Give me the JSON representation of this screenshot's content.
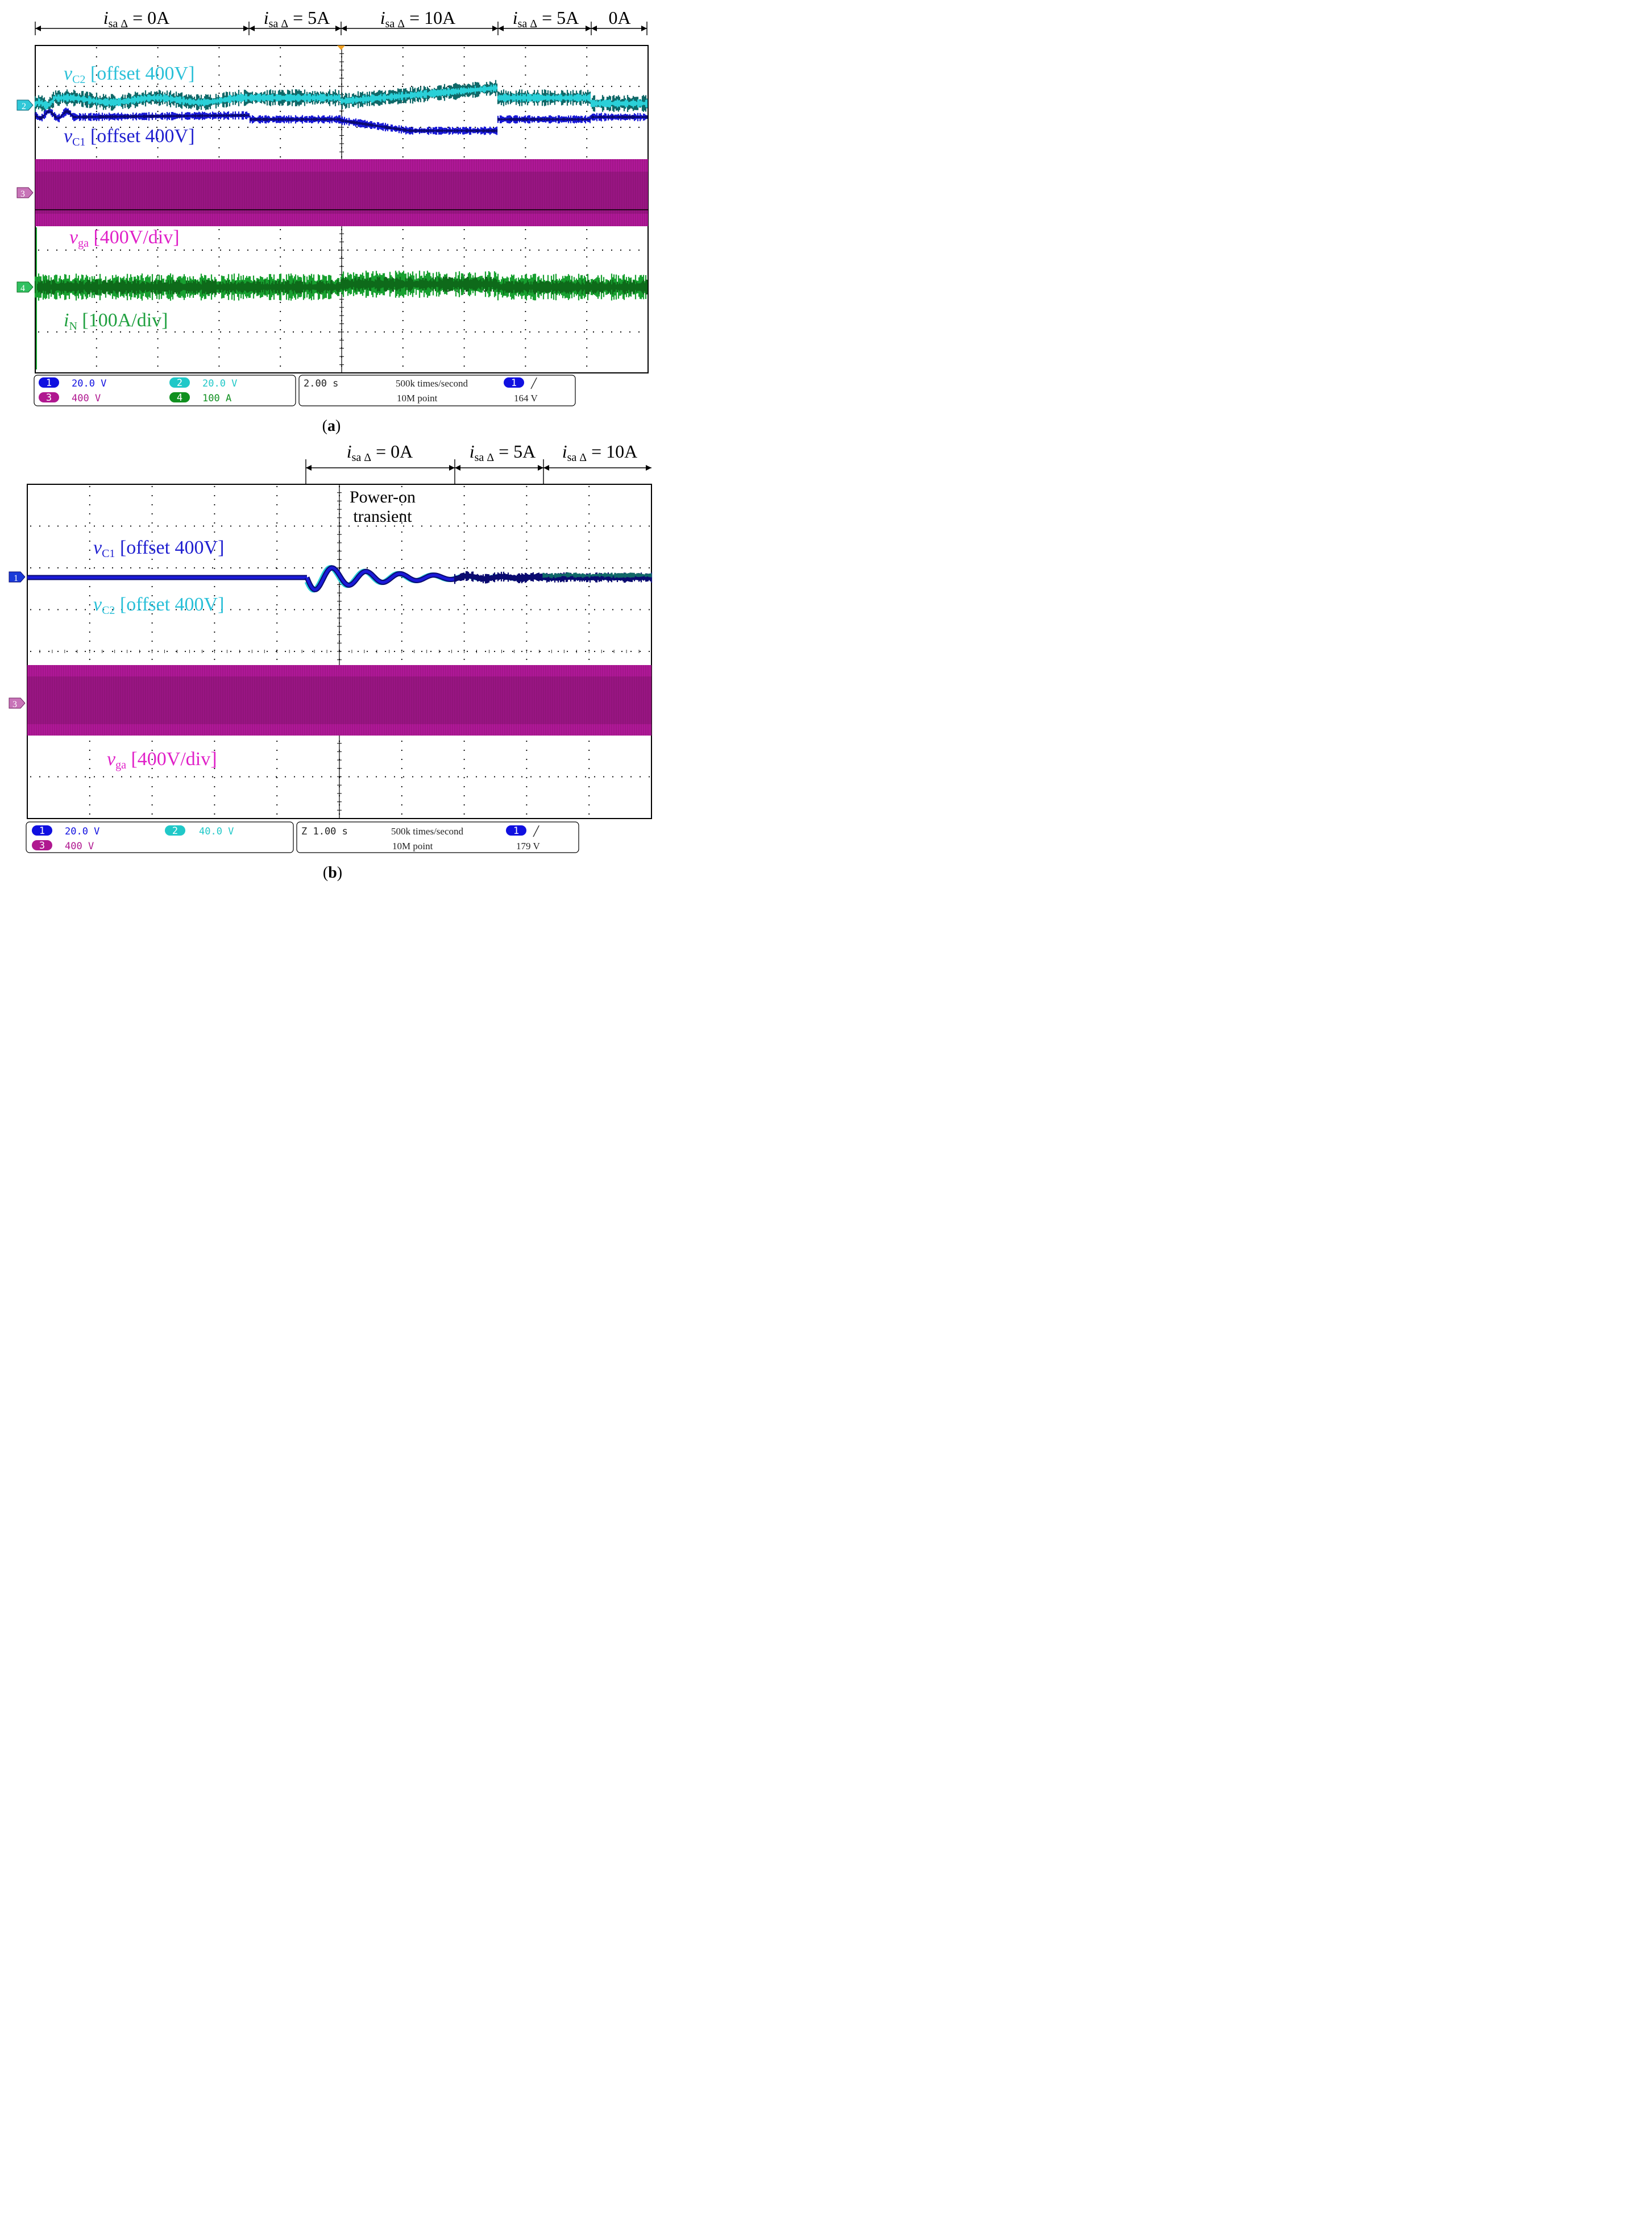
{
  "chart_data": [
    {
      "type": "oscilloscope",
      "panel_label": "(a)",
      "panel_letter": "a",
      "intervals": [
        {
          "base": "i",
          "sub": "sa Δ",
          "rest": " = 0A"
        },
        {
          "base": "i",
          "sub": "sa Δ",
          "rest": " = 5A"
        },
        {
          "base": "i",
          "sub": "sa Δ",
          "rest": " = 10A"
        },
        {
          "base": "i",
          "sub": "sa Δ",
          "rest": " = 5A"
        },
        {
          "base": "",
          "sub": "",
          "rest": "0A"
        }
      ],
      "channel_markers": [
        "2",
        "3",
        "4"
      ],
      "trace_labels": [
        {
          "base": "v",
          "sub": "C2",
          "rest": " [offset 400V]",
          "color": "#2ac0d8"
        },
        {
          "base": "v",
          "sub": "C1",
          "rest": " [offset 400V]",
          "color": "#2020d0"
        },
        {
          "base": "v",
          "sub": "ga",
          "rest": " [400V/div]",
          "color": "#e020c8"
        },
        {
          "base": "i",
          "sub": "N",
          "rest": " [100A/div]",
          "color": "#20a040"
        }
      ],
      "settings": {
        "channels": [
          {
            "id": "1",
            "scale": "20.0 V",
            "color": "#1010e0"
          },
          {
            "id": "2",
            "scale": "20.0 V",
            "color": "#20c8c8"
          },
          {
            "id": "3",
            "scale": "400 V",
            "color": "#b01890"
          },
          {
            "id": "4",
            "scale": "100 A",
            "color": "#109020"
          }
        ],
        "timebase": "2.00 s",
        "sample_rate": "500k times/second",
        "record_length": "10M  point",
        "trigger_channel": "1",
        "trigger_slope": "╱",
        "trigger_level": "164 V"
      },
      "waveform_levels": {
        "vC1": [
          -0.15,
          -0.1,
          -0.1,
          -0.35,
          -0.62,
          -0.62,
          -0.1,
          -0.1,
          -0.15,
          -0.15
        ],
        "vC2": [
          -0.2,
          0.1,
          0.1,
          0.35,
          0.58,
          0.9,
          0.2,
          0.2,
          0.15,
          0.15
        ]
      }
    },
    {
      "type": "oscilloscope",
      "panel_label": "(b)",
      "panel_letter": "b",
      "intervals": [
        {
          "base": "i",
          "sub": "sa Δ",
          "rest": " = 0A"
        },
        {
          "base": "i",
          "sub": "sa Δ",
          "rest": " = 5A"
        },
        {
          "base": "i",
          "sub": "sa Δ",
          "rest": " = 10A"
        }
      ],
      "annotation": [
        "Power-on",
        "transient"
      ],
      "channel_markers": [
        "1",
        "3"
      ],
      "trace_labels": [
        {
          "base": "v",
          "sub": "C1",
          "rest": " [offset 400V]",
          "color": "#2020d0"
        },
        {
          "base": "v",
          "sub": "C2",
          "rest": " [offset 400V]",
          "color": "#2ac0d8"
        },
        {
          "base": "v",
          "sub": "ga",
          "rest": " [400V/div]",
          "color": "#e020c8"
        }
      ],
      "settings": {
        "channels": [
          {
            "id": "1",
            "scale": "20.0 V",
            "color": "#1010e0"
          },
          {
            "id": "2",
            "scale": "40.0 V",
            "color": "#20c8c8"
          },
          {
            "id": "3",
            "scale": "400 V",
            "color": "#b01890"
          }
        ],
        "timebase": "Z 1.00 s",
        "sample_rate": "500k times/second",
        "record_length": "10M  point",
        "trigger_channel": "1",
        "trigger_slope": "╱",
        "trigger_level": "179 V"
      }
    }
  ],
  "colors": {
    "grid": "#000000",
    "vC1": "#1a1ad8",
    "vC1_dark": "#0a0a70",
    "vC2": "#2ad0d8",
    "vC2_dark": "#106868",
    "vga": "#b01898",
    "vga_dark": "#70105c",
    "iN": "#18a030",
    "iN_dark": "#0e6a1a"
  }
}
